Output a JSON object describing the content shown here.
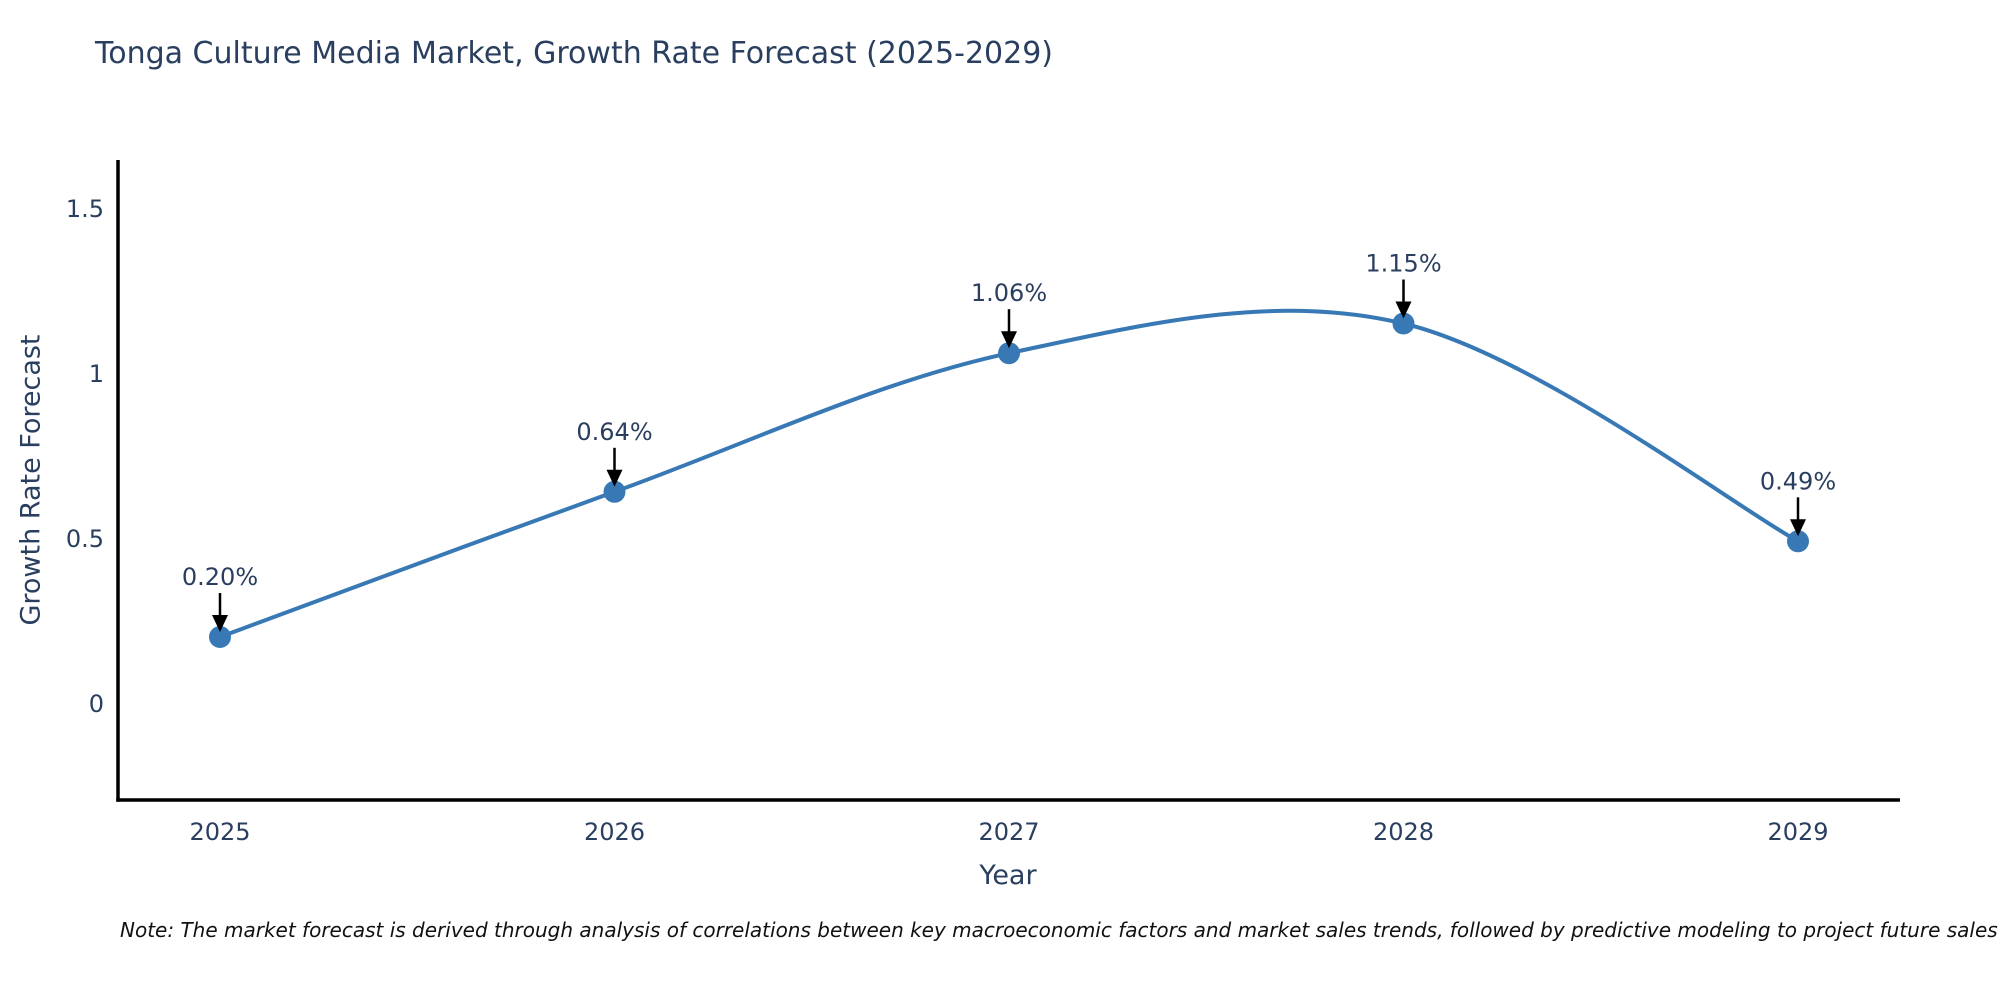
{
  "chart_data": {
    "type": "line",
    "title": "Tonga Culture Media Market, Growth Rate Forecast (2025-2029)",
    "xlabel": "Year",
    "ylabel": "Growth Rate Forecast",
    "x": [
      2025,
      2026,
      2027,
      2028,
      2029
    ],
    "x_tick_labels": [
      "2025",
      "2026",
      "2027",
      "2028",
      "2029"
    ],
    "series": [
      {
        "name": "Growth Rate Forecast",
        "values": [
          0.2,
          0.64,
          1.06,
          1.15,
          0.49
        ],
        "point_labels": [
          "0.20%",
          "0.64%",
          "1.06%",
          "1.15%",
          "0.49%"
        ]
      }
    ],
    "y_ticks": [
      0,
      0.5,
      1,
      1.5
    ],
    "y_tick_labels": [
      "0",
      "0.5",
      "1",
      "1.5"
    ],
    "ylim": [
      -0.29,
      1.64
    ],
    "line_shape": "spline",
    "grid": false,
    "legend_position": "none",
    "footnote": "Note: The market forecast is derived through analysis of correlations between key macroeconomic factors and market sales trends, followed by predictive modeling to project future sales",
    "colors": {
      "line": "#3879b5",
      "marker": "#3879b5",
      "text": "#2a3f5f",
      "axis": "#000000",
      "annotation_arrow": "#000000",
      "note_text": "#111111",
      "background": "#ffffff"
    }
  }
}
